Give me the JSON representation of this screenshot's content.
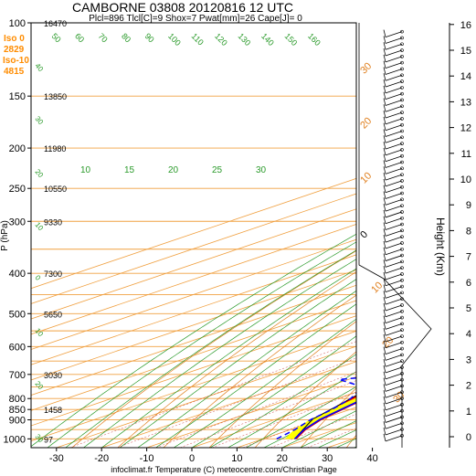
{
  "header": {
    "title": "CAMBORNE 03808 20120816 12 UTC",
    "subtitle": "Plcl=896 Tlcl[C]=9 Shox=7 Pwat[mm]=26 Cape[J]= 0"
  },
  "iso_info": {
    "iso0_label": "Iso 0",
    "iso0_value": "2829",
    "iso10_label": "Iso-10",
    "iso10_value": "4815"
  },
  "footer": "infoclimat.fr Temperature (C) meteocentre.com/Christian Page",
  "colors": {
    "isobar": "#f0a040",
    "dry_adiabat": "#e08020",
    "moist_adiabat": "#2a9a2a",
    "mixing_ratio": "#2a9a2a",
    "cape_fill": "#ff0000",
    "cin_fill": "#ffff00",
    "temperature": "#0000ff",
    "dewpoint": "#0000ff",
    "wind_barbs": "#000000"
  },
  "chart_data": {
    "type": "skew-t",
    "ylabel": "P (hPa)",
    "y2label": "Height (Km)",
    "pressure_levels": [
      100,
      150,
      200,
      250,
      300,
      400,
      500,
      600,
      700,
      800,
      850,
      900,
      1000
    ],
    "geopotential_heights": [
      {
        "p": 100,
        "h": "16470"
      },
      {
        "p": 150,
        "h": "13850"
      },
      {
        "p": 200,
        "h": "11980"
      },
      {
        "p": 250,
        "h": "10550"
      },
      {
        "p": 300,
        "h": "9330"
      },
      {
        "p": 400,
        "h": "7300"
      },
      {
        "p": 500,
        "h": "5650"
      },
      {
        "p": 700,
        "h": "3030"
      },
      {
        "p": 850,
        "h": "1458"
      },
      {
        "p": 1000,
        "h": "97"
      }
    ],
    "x_ticks": [
      -30,
      -20,
      -10,
      0,
      10,
      20,
      30,
      40
    ],
    "height_km_ticks": [
      0,
      1,
      2,
      3,
      4,
      5,
      6,
      7,
      8,
      9,
      10,
      11,
      12,
      13,
      14,
      15,
      16
    ],
    "mixing_ratio_labels": [
      "10",
      "15",
      "20",
      "25",
      "30"
    ],
    "moist_labels_top": [
      "50",
      "60",
      "70",
      "80",
      "90",
      "100",
      "110",
      "120",
      "130",
      "140",
      "150",
      "160"
    ],
    "dry_labels_right": [
      "30",
      "20",
      "10",
      "0",
      "10",
      "20",
      "30"
    ],
    "left_diag_labels": [
      "40",
      "30",
      "20",
      "10",
      "0",
      "10",
      "20",
      "30"
    ],
    "temperature_profile": [
      {
        "p": 1000,
        "t": 17
      },
      {
        "p": 950,
        "t": 13
      },
      {
        "p": 900,
        "t": 10
      },
      {
        "p": 850,
        "t": 8
      },
      {
        "p": 800,
        "t": 6
      },
      {
        "p": 750,
        "t": 3
      },
      {
        "p": 700,
        "t": 0
      },
      {
        "p": 650,
        "t": -4
      },
      {
        "p": 600,
        "t": -8
      },
      {
        "p": 550,
        "t": -12
      },
      {
        "p": 500,
        "t": -17
      },
      {
        "p": 450,
        "t": -22
      },
      {
        "p": 400,
        "t": -28
      },
      {
        "p": 350,
        "t": -35
      },
      {
        "p": 300,
        "t": -43
      },
      {
        "p": 250,
        "t": -52
      },
      {
        "p": 220,
        "t": -57
      },
      {
        "p": 200,
        "t": -56
      },
      {
        "p": 180,
        "t": -54
      },
      {
        "p": 150,
        "t": -56
      },
      {
        "p": 130,
        "t": -57
      },
      {
        "p": 110,
        "t": -58
      },
      {
        "p": 100,
        "t": -59
      }
    ],
    "dewpoint_profile": [
      {
        "p": 1000,
        "t": 13
      },
      {
        "p": 950,
        "t": 11
      },
      {
        "p": 900,
        "t": 8
      },
      {
        "p": 850,
        "t": 6
      },
      {
        "p": 800,
        "t": 3
      },
      {
        "p": 750,
        "t": -2
      },
      {
        "p": 720,
        "t": -12
      },
      {
        "p": 700,
        "t": -3
      },
      {
        "p": 680,
        "t": -10
      },
      {
        "p": 650,
        "t": -9
      },
      {
        "p": 600,
        "t": -14
      },
      {
        "p": 550,
        "t": -19
      },
      {
        "p": 500,
        "t": -27
      },
      {
        "p": 470,
        "t": -24
      },
      {
        "p": 450,
        "t": -27
      },
      {
        "p": 400,
        "t": -35
      },
      {
        "p": 350,
        "t": -51
      },
      {
        "p": 320,
        "t": -58
      },
      {
        "p": 300,
        "t": -50
      },
      {
        "p": 270,
        "t": -55
      },
      {
        "p": 250,
        "t": -56
      },
      {
        "p": 220,
        "t": -66
      },
      {
        "p": 200,
        "t": -70
      },
      {
        "p": 170,
        "t": -82
      },
      {
        "p": 150,
        "t": -86
      },
      {
        "p": 130,
        "t": -84
      },
      {
        "p": 120,
        "t": -80
      },
      {
        "p": 110,
        "t": -85
      },
      {
        "p": 100,
        "t": -78
      }
    ]
  }
}
